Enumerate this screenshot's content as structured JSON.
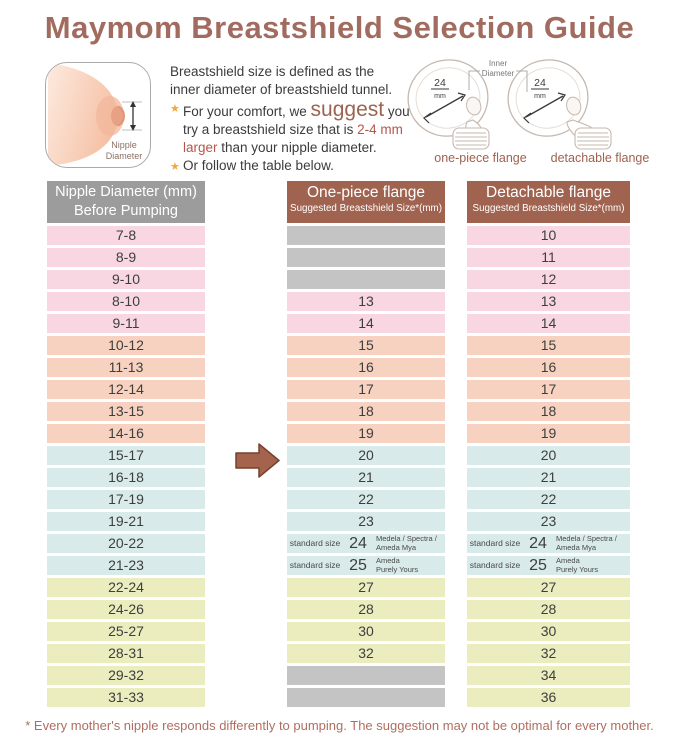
{
  "title": "Maymom Breastshield Selection Guide",
  "intro": {
    "line1": "Breastshield size is defined as the",
    "line2": "inner diameter of breastshield tunnel.",
    "bullet1": {
      "pre": "For your comfort, we ",
      "suggest": "suggest",
      "post": " you",
      "line2_pre": "try a breastshield size that is ",
      "highlight1": "2-4 mm",
      "highlight2": "larger",
      "line3_post": " than your nipple diameter."
    },
    "bullet2": "Or follow the table below."
  },
  "nipple_diagram": {
    "label_line1": "Nipple",
    "label_line2": "Diameter"
  },
  "flange_diagrams": {
    "inner_label_line1": "Inner",
    "inner_label_line2": "Diameter",
    "size_value": "24",
    "size_unit": "mm",
    "caption_one_piece": "one-piece flange",
    "caption_detachable": "detachable flange"
  },
  "table": {
    "headers": {
      "nipple_line1": "Nipple Diameter (mm)",
      "nipple_line2": "Before Pumping",
      "one_piece_line1": "One-piece flange",
      "one_piece_line2": "Suggested Breastshield Size*(mm)",
      "detachable_line1": "Detachable flange",
      "detachable_line2": "Suggested Breastshield Size*(mm)"
    },
    "rows": [
      {
        "nipple": "7-8",
        "color": "pink",
        "one_piece": {
          "type": "empty"
        },
        "detachable": {
          "type": "value",
          "text": "10"
        }
      },
      {
        "nipple": "8-9",
        "color": "pink",
        "one_piece": {
          "type": "empty"
        },
        "detachable": {
          "type": "value",
          "text": "11"
        }
      },
      {
        "nipple": "9-10",
        "color": "pink",
        "one_piece": {
          "type": "empty"
        },
        "detachable": {
          "type": "value",
          "text": "12"
        }
      },
      {
        "nipple": "8-10",
        "color": "pink",
        "one_piece": {
          "type": "value",
          "text": "13"
        },
        "detachable": {
          "type": "value",
          "text": "13"
        }
      },
      {
        "nipple": "9-11",
        "color": "pink",
        "one_piece": {
          "type": "value",
          "text": "14"
        },
        "detachable": {
          "type": "value",
          "text": "14"
        }
      },
      {
        "nipple": "10-12",
        "color": "peach",
        "one_piece": {
          "type": "value",
          "text": "15"
        },
        "detachable": {
          "type": "value",
          "text": "15"
        }
      },
      {
        "nipple": "11-13",
        "color": "peach",
        "one_piece": {
          "type": "value",
          "text": "16"
        },
        "detachable": {
          "type": "value",
          "text": "16"
        }
      },
      {
        "nipple": "12-14",
        "color": "peach",
        "one_piece": {
          "type": "value",
          "text": "17"
        },
        "detachable": {
          "type": "value",
          "text": "17"
        }
      },
      {
        "nipple": "13-15",
        "color": "peach",
        "one_piece": {
          "type": "value",
          "text": "18"
        },
        "detachable": {
          "type": "value",
          "text": "18"
        }
      },
      {
        "nipple": "14-16",
        "color": "peach",
        "one_piece": {
          "type": "value",
          "text": "19"
        },
        "detachable": {
          "type": "value",
          "text": "19"
        }
      },
      {
        "nipple": "15-17",
        "color": "cyan",
        "one_piece": {
          "type": "value",
          "text": "20"
        },
        "detachable": {
          "type": "value",
          "text": "20"
        }
      },
      {
        "nipple": "16-18",
        "color": "cyan",
        "one_piece": {
          "type": "value",
          "text": "21"
        },
        "detachable": {
          "type": "value",
          "text": "21"
        }
      },
      {
        "nipple": "17-19",
        "color": "cyan",
        "one_piece": {
          "type": "value",
          "text": "22"
        },
        "detachable": {
          "type": "value",
          "text": "22"
        }
      },
      {
        "nipple": "19-21",
        "color": "cyan",
        "one_piece": {
          "type": "value",
          "text": "23"
        },
        "detachable": {
          "type": "value",
          "text": "23"
        }
      },
      {
        "nipple": "20-22",
        "color": "cyan",
        "one_piece": {
          "type": "special",
          "prefix": "standard size",
          "size": "24",
          "note1": "Medela / Spectra /",
          "note2": "Ameda Mya"
        },
        "detachable": {
          "type": "special",
          "prefix": "standard size",
          "size": "24",
          "note1": "Medela / Spectra /",
          "note2": "Ameda Mya"
        }
      },
      {
        "nipple": "21-23",
        "color": "cyan",
        "one_piece": {
          "type": "special",
          "prefix": "standard size",
          "size": "25",
          "note1": "Ameda",
          "note2": "Purely Yours"
        },
        "detachable": {
          "type": "special",
          "prefix": "standard size",
          "size": "25",
          "note1": "Ameda",
          "note2": "Purely Yours"
        }
      },
      {
        "nipple": "22-24",
        "color": "yellow",
        "one_piece": {
          "type": "value",
          "text": "27"
        },
        "detachable": {
          "type": "value",
          "text": "27"
        }
      },
      {
        "nipple": "24-26",
        "color": "yellow",
        "one_piece": {
          "type": "value",
          "text": "28"
        },
        "detachable": {
          "type": "value",
          "text": "28"
        }
      },
      {
        "nipple": "25-27",
        "color": "yellow",
        "one_piece": {
          "type": "value",
          "text": "30"
        },
        "detachable": {
          "type": "value",
          "text": "30"
        }
      },
      {
        "nipple": "28-31",
        "color": "yellow",
        "one_piece": {
          "type": "value",
          "text": "32"
        },
        "detachable": {
          "type": "value",
          "text": "32"
        }
      },
      {
        "nipple": "29-32",
        "color": "yellow",
        "one_piece": {
          "type": "empty"
        },
        "detachable": {
          "type": "value",
          "text": "34"
        }
      },
      {
        "nipple": "31-33",
        "color": "yellow",
        "one_piece": {
          "type": "empty"
        },
        "detachable": {
          "type": "value",
          "text": "36"
        }
      }
    ]
  },
  "footer": "* Every mother's nipple responds differently to pumping. The suggestion may not be optimal for every mother.",
  "colors": {
    "title_brown": "#a26b5f",
    "header_brown": "#a06350",
    "header_gray": "#9c9c9c",
    "row_pink": "#f8d7e2",
    "row_peach": "#f7d2c0",
    "row_cyan": "#d8eae9",
    "row_yellow": "#ebedbf",
    "empty_gray": "#c4c4c4",
    "highlight_red": "#b5564a",
    "star_orange": "#f2a93b",
    "footer_red": "#b06e61"
  }
}
